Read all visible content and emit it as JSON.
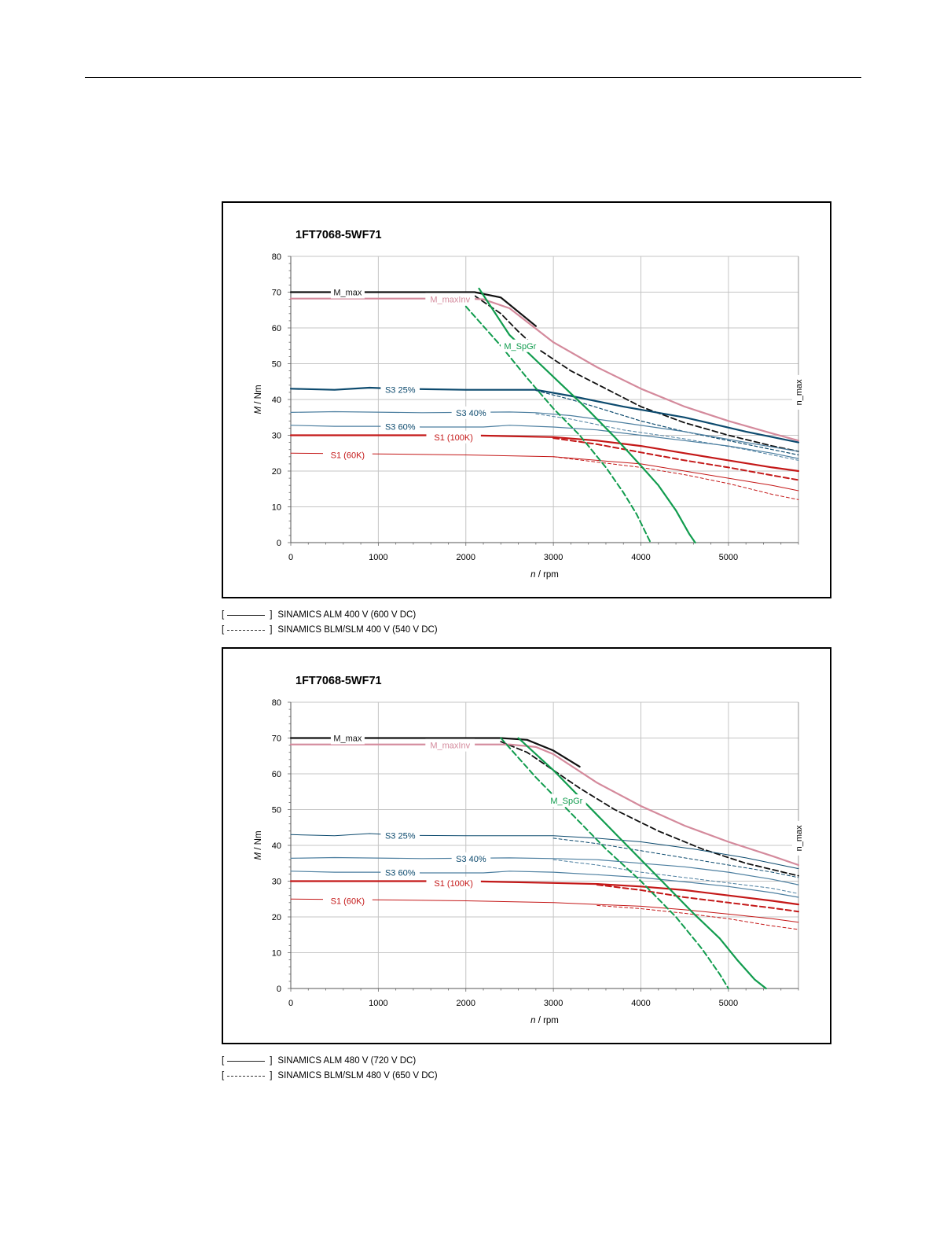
{
  "chart_data": [
    {
      "type": "line",
      "title": "1FT7068-5WF71",
      "xlabel_var": "n",
      "xlabel_unit": " / rpm",
      "ylabel_var": "M",
      "ylabel_unit": " / Nm",
      "xlim": [
        0,
        5800
      ],
      "ylim": [
        0,
        80
      ],
      "x_ticks": [
        0,
        1000,
        2000,
        3000,
        4000,
        5000
      ],
      "y_ticks": [
        0,
        10,
        20,
        30,
        40,
        50,
        60,
        70,
        80
      ],
      "grid": true,
      "vline": {
        "x": 5800,
        "label": "n_max"
      },
      "colors": {
        "black": "#111111",
        "pink": "#d48a9c",
        "navy": "#0c4a6e",
        "steel": "#4d7fa0",
        "red": "#c41818",
        "green": "#119c4e"
      },
      "series": [
        {
          "name": "M_max",
          "color": "black",
          "width": 2.2,
          "dash": false,
          "x": [
            0,
            1600,
            2100,
            2400,
            2800
          ],
          "y": [
            70,
            70,
            70,
            68.5,
            60.5
          ]
        },
        {
          "name": "M_max (BLM/SLM)",
          "color": "black",
          "width": 1.8,
          "dash": true,
          "x": [
            2100,
            2400,
            2600,
            2800,
            3200,
            3600,
            4000,
            4500,
            5000,
            5500,
            5800
          ],
          "y": [
            69,
            64,
            59,
            54.5,
            48,
            43,
            38,
            33.5,
            30,
            27,
            25.5
          ]
        },
        {
          "name": "M_maxInv",
          "color": "pink",
          "width": 2.2,
          "dash": false,
          "x": [
            0,
            2000,
            2200,
            2500,
            3000,
            3500,
            4000,
            4500,
            5000,
            5500,
            5800
          ],
          "y": [
            68.2,
            68.2,
            68,
            65.5,
            56,
            49,
            43,
            38,
            34,
            30.5,
            28.5
          ]
        },
        {
          "name": "S3 25%",
          "color": "navy",
          "width": 2.2,
          "dash": false,
          "x": [
            0,
            500,
            900,
            1200,
            2000,
            2800,
            3200,
            3800,
            4500,
            5200,
            5800
          ],
          "y": [
            43,
            42.7,
            43.3,
            43,
            42.7,
            42.7,
            41,
            38,
            35,
            31,
            28
          ]
        },
        {
          "name": "S3 25% (BLM/SLM)",
          "color": "navy",
          "width": 1.2,
          "dash": true,
          "x": [
            2800,
            3200,
            3600,
            4000,
            4500,
            5000,
            5500,
            5800
          ],
          "y": [
            42.5,
            40,
            37,
            34,
            31,
            28.5,
            26,
            24.5
          ]
        },
        {
          "name": "S3 40%",
          "color": "steel",
          "width": 1.2,
          "dash": false,
          "x": [
            0,
            500,
            1500,
            2500,
            2800,
            3200,
            3800,
            4500,
            5200,
            5800
          ],
          "y": [
            36.4,
            36.6,
            36.3,
            36.5,
            36.3,
            35.5,
            33.5,
            31,
            28,
            25.5
          ]
        },
        {
          "name": "S3 40% (BLM/SLM)",
          "color": "steel",
          "width": 1.0,
          "dash": true,
          "x": [
            2800,
            3200,
            3800,
            4500,
            5200,
            5800
          ],
          "y": [
            36,
            34.5,
            31.5,
            29,
            26,
            23
          ]
        },
        {
          "name": "S3 60%",
          "color": "steel",
          "width": 1.2,
          "dash": false,
          "x": [
            0,
            500,
            1000,
            1500,
            2200,
            2500,
            3000,
            3500,
            4000,
            4500,
            5000,
            5500,
            5800
          ],
          "y": [
            32.8,
            32.5,
            32.5,
            32.3,
            32.3,
            32.8,
            32.3,
            31.5,
            30,
            28.5,
            27,
            25,
            23.5
          ]
        },
        {
          "name": "S1 (100K)",
          "color": "red",
          "width": 2.2,
          "dash": false,
          "x": [
            0,
            2000,
            3000,
            3500,
            4000,
            4500,
            5000,
            5500,
            5800
          ],
          "y": [
            30,
            30,
            29.5,
            28.5,
            27,
            25,
            23,
            21,
            20
          ]
        },
        {
          "name": "S1 (100K) (BLM/SLM)",
          "color": "red",
          "width": 2.0,
          "dash": true,
          "x": [
            3000,
            3500,
            4000,
            4500,
            5000,
            5500,
            5800
          ],
          "y": [
            29.2,
            27.5,
            25.2,
            23,
            21,
            18.8,
            17.5
          ]
        },
        {
          "name": "S1 (60K)",
          "color": "red",
          "width": 1.0,
          "dash": false,
          "x": [
            0,
            1000,
            2000,
            3000,
            3500,
            4000,
            4500,
            5000,
            5500,
            5800
          ],
          "y": [
            25,
            24.8,
            24.5,
            24,
            23,
            22,
            20,
            18,
            16,
            14.5
          ]
        },
        {
          "name": "S1 (60K) (BLM/SLM)",
          "color": "red",
          "width": 1.0,
          "dash": true,
          "x": [
            3000,
            3500,
            4000,
            4500,
            5000,
            5500,
            5800
          ],
          "y": [
            24,
            22.5,
            21,
            19,
            16.5,
            13.5,
            12
          ]
        },
        {
          "name": "M_SpGr",
          "color": "green",
          "width": 2.2,
          "dash": false,
          "x": [
            2150,
            2500,
            2800,
            3100,
            3400,
            3700,
            4000,
            4200,
            4400,
            4550,
            4620
          ],
          "y": [
            71,
            58,
            51,
            44,
            37,
            29.5,
            21.5,
            16,
            9,
            2.5,
            0
          ]
        },
        {
          "name": "M_SpGr (BLM/SLM)",
          "color": "green",
          "width": 2.0,
          "dash": true,
          "x": [
            2000,
            2400,
            2700,
            3000,
            3300,
            3600,
            3800,
            3950,
            4050,
            4110
          ],
          "y": [
            66,
            55,
            46,
            37.5,
            30,
            21,
            14,
            8,
            3,
            0
          ]
        }
      ],
      "labels": [
        {
          "text": "M_max",
          "color": "black",
          "x": 650,
          "y": 70
        },
        {
          "text": "M_maxInv",
          "color": "pink",
          "x": 1820,
          "y": 68
        },
        {
          "text": "M_SpGr",
          "color": "green",
          "x": 2620,
          "y": 55
        },
        {
          "text": "S3 25%",
          "color": "navy",
          "x": 1250,
          "y": 42.7
        },
        {
          "text": "S3 40%",
          "color": "navy",
          "x": 2060,
          "y": 36.3
        },
        {
          "text": "S3 60%",
          "color": "navy",
          "x": 1250,
          "y": 32.4
        },
        {
          "text": "S1 (100K)",
          "color": "red",
          "x": 1860,
          "y": 29.5
        },
        {
          "text": "S1 (60K)",
          "color": "red",
          "x": 650,
          "y": 24.5
        }
      ]
    },
    {
      "type": "line",
      "title": "1FT7068-5WF71",
      "xlabel_var": "n",
      "xlabel_unit": " / rpm",
      "ylabel_var": "M",
      "ylabel_unit": " / Nm",
      "xlim": [
        0,
        5800
      ],
      "ylim": [
        0,
        80
      ],
      "x_ticks": [
        0,
        1000,
        2000,
        3000,
        4000,
        5000
      ],
      "y_ticks": [
        0,
        10,
        20,
        30,
        40,
        50,
        60,
        70,
        80
      ],
      "grid": true,
      "vline": {
        "x": 5800,
        "label": "n_max"
      },
      "colors": {
        "black": "#111111",
        "pink": "#d48a9c",
        "navy": "#0c4a6e",
        "steel": "#4d7fa0",
        "red": "#c41818",
        "green": "#119c4e"
      },
      "series": [
        {
          "name": "M_max",
          "color": "black",
          "width": 2.2,
          "dash": false,
          "x": [
            0,
            1600,
            2400,
            2700,
            3000,
            3300
          ],
          "y": [
            70,
            70,
            70,
            69.5,
            66.5,
            62
          ]
        },
        {
          "name": "M_max (BLM/SLM)",
          "color": "black",
          "width": 1.8,
          "dash": true,
          "x": [
            2400,
            2700,
            3000,
            3300,
            3700,
            4200,
            4700,
            5200,
            5800
          ],
          "y": [
            69,
            66,
            61,
            56,
            50,
            44,
            39,
            35,
            31.5
          ]
        },
        {
          "name": "M_maxInv",
          "color": "pink",
          "width": 2.2,
          "dash": false,
          "x": [
            0,
            2500,
            2800,
            3000,
            3500,
            4000,
            4500,
            5000,
            5500,
            5800
          ],
          "y": [
            68.2,
            68.2,
            67.5,
            65.5,
            57.5,
            51,
            45.5,
            41,
            37,
            34.5
          ]
        },
        {
          "name": "S3 25%",
          "color": "navy",
          "width": 1.0,
          "dash": false,
          "x": [
            0,
            500,
            900,
            1300,
            2000,
            3000,
            3500,
            4000,
            4600,
            5200,
            5800
          ],
          "y": [
            43,
            42.7,
            43.3,
            42.8,
            42.7,
            42.7,
            42,
            41,
            39,
            36.5,
            33.5
          ]
        },
        {
          "name": "S3 25% (BLM/SLM)",
          "color": "navy",
          "width": 1.0,
          "dash": true,
          "x": [
            3000,
            3500,
            4000,
            4500,
            5000,
            5500,
            5800
          ],
          "y": [
            42,
            40.5,
            38.5,
            36.5,
            34.5,
            32.5,
            31
          ]
        },
        {
          "name": "S3 40%",
          "color": "steel",
          "width": 1.2,
          "dash": false,
          "x": [
            0,
            500,
            1500,
            2500,
            3000,
            3500,
            4000,
            4500,
            5000,
            5500,
            5800
          ],
          "y": [
            36.4,
            36.6,
            36.3,
            36.5,
            36.3,
            36,
            35,
            34,
            32.5,
            30.5,
            29
          ]
        },
        {
          "name": "S3 40% (BLM/SLM)",
          "color": "steel",
          "width": 1.0,
          "dash": true,
          "x": [
            3000,
            3500,
            4000,
            4500,
            5000,
            5500,
            5800
          ],
          "y": [
            36,
            34.5,
            32.5,
            31,
            29.5,
            28,
            26.5
          ]
        },
        {
          "name": "S3 60%",
          "color": "steel",
          "width": 1.2,
          "dash": false,
          "x": [
            0,
            500,
            1000,
            1500,
            2200,
            2500,
            3000,
            3500,
            4000,
            4500,
            5000,
            5500,
            5800
          ],
          "y": [
            32.8,
            32.5,
            32.5,
            32.3,
            32.3,
            32.8,
            32.5,
            31.8,
            31,
            29.8,
            28.5,
            26.8,
            25.5
          ]
        },
        {
          "name": "S1 (100K)",
          "color": "red",
          "width": 2.2,
          "dash": false,
          "x": [
            0,
            2000,
            3000,
            3500,
            4000,
            4500,
            5000,
            5500,
            5800
          ],
          "y": [
            30,
            30,
            29.5,
            29.2,
            28.5,
            27.5,
            26,
            24.5,
            23.5
          ]
        },
        {
          "name": "S1 (100K) (BLM/SLM)",
          "color": "red",
          "width": 2.0,
          "dash": true,
          "x": [
            3500,
            4000,
            4500,
            5000,
            5500,
            5800
          ],
          "y": [
            29,
            27.5,
            25.5,
            24,
            22.5,
            21.5
          ]
        },
        {
          "name": "S1 (60K)",
          "color": "red",
          "width": 1.0,
          "dash": false,
          "x": [
            0,
            1000,
            2000,
            3000,
            3500,
            4000,
            4500,
            5000,
            5500,
            5800
          ],
          "y": [
            25,
            24.8,
            24.5,
            24,
            23.5,
            23,
            22,
            20.8,
            19.5,
            18.5
          ]
        },
        {
          "name": "S1 (60K) (BLM/SLM)",
          "color": "red",
          "width": 1.0,
          "dash": true,
          "x": [
            3500,
            4000,
            4500,
            5000,
            5500,
            5800
          ],
          "y": [
            23.2,
            22.3,
            21,
            19.5,
            17.5,
            16.5
          ]
        },
        {
          "name": "M_SpGr",
          "color": "green",
          "width": 2.2,
          "dash": false,
          "x": [
            2600,
            3000,
            3400,
            3800,
            4200,
            4600,
            4900,
            5100,
            5300,
            5430
          ],
          "y": [
            70,
            61,
            51,
            41,
            31,
            21,
            14,
            8,
            2.5,
            0
          ]
        },
        {
          "name": "M_SpGr (BLM/SLM)",
          "color": "green",
          "width": 2.0,
          "dash": true,
          "x": [
            2400,
            2800,
            3200,
            3600,
            4000,
            4400,
            4700,
            4900,
            5000
          ],
          "y": [
            70,
            59,
            49,
            39,
            30,
            20,
            11,
            4,
            0
          ]
        }
      ],
      "labels": [
        {
          "text": "M_max",
          "color": "black",
          "x": 650,
          "y": 70
        },
        {
          "text": "M_maxInv",
          "color": "pink",
          "x": 1820,
          "y": 68
        },
        {
          "text": "M_SpGr",
          "color": "green",
          "x": 3150,
          "y": 52.5
        },
        {
          "text": "S3 25%",
          "color": "navy",
          "x": 1250,
          "y": 42.7
        },
        {
          "text": "S3 40%",
          "color": "navy",
          "x": 2060,
          "y": 36.3
        },
        {
          "text": "S3 60%",
          "color": "navy",
          "x": 1250,
          "y": 32.4
        },
        {
          "text": "S1 (100K)",
          "color": "red",
          "x": 1860,
          "y": 29.5
        },
        {
          "text": "S1 (60K)",
          "color": "red",
          "x": 650,
          "y": 24.5
        }
      ]
    }
  ],
  "legend_1": {
    "solid_open": "[",
    "solid_close": "]",
    "solid_text": "SINAMICS ALM 400 V (600 V DC)",
    "dashed_open": "[",
    "dashed_close": "]",
    "dashed_text": "SINAMICS BLM/SLM 400 V (540 V DC)"
  },
  "legend_2": {
    "solid_open": "[",
    "solid_close": "]",
    "solid_text": "SINAMICS ALM 480 V (720 V DC)",
    "dashed_open": "[",
    "dashed_close": "]",
    "dashed_text": "SINAMICS BLM/SLM 480 V (650 V DC)"
  }
}
